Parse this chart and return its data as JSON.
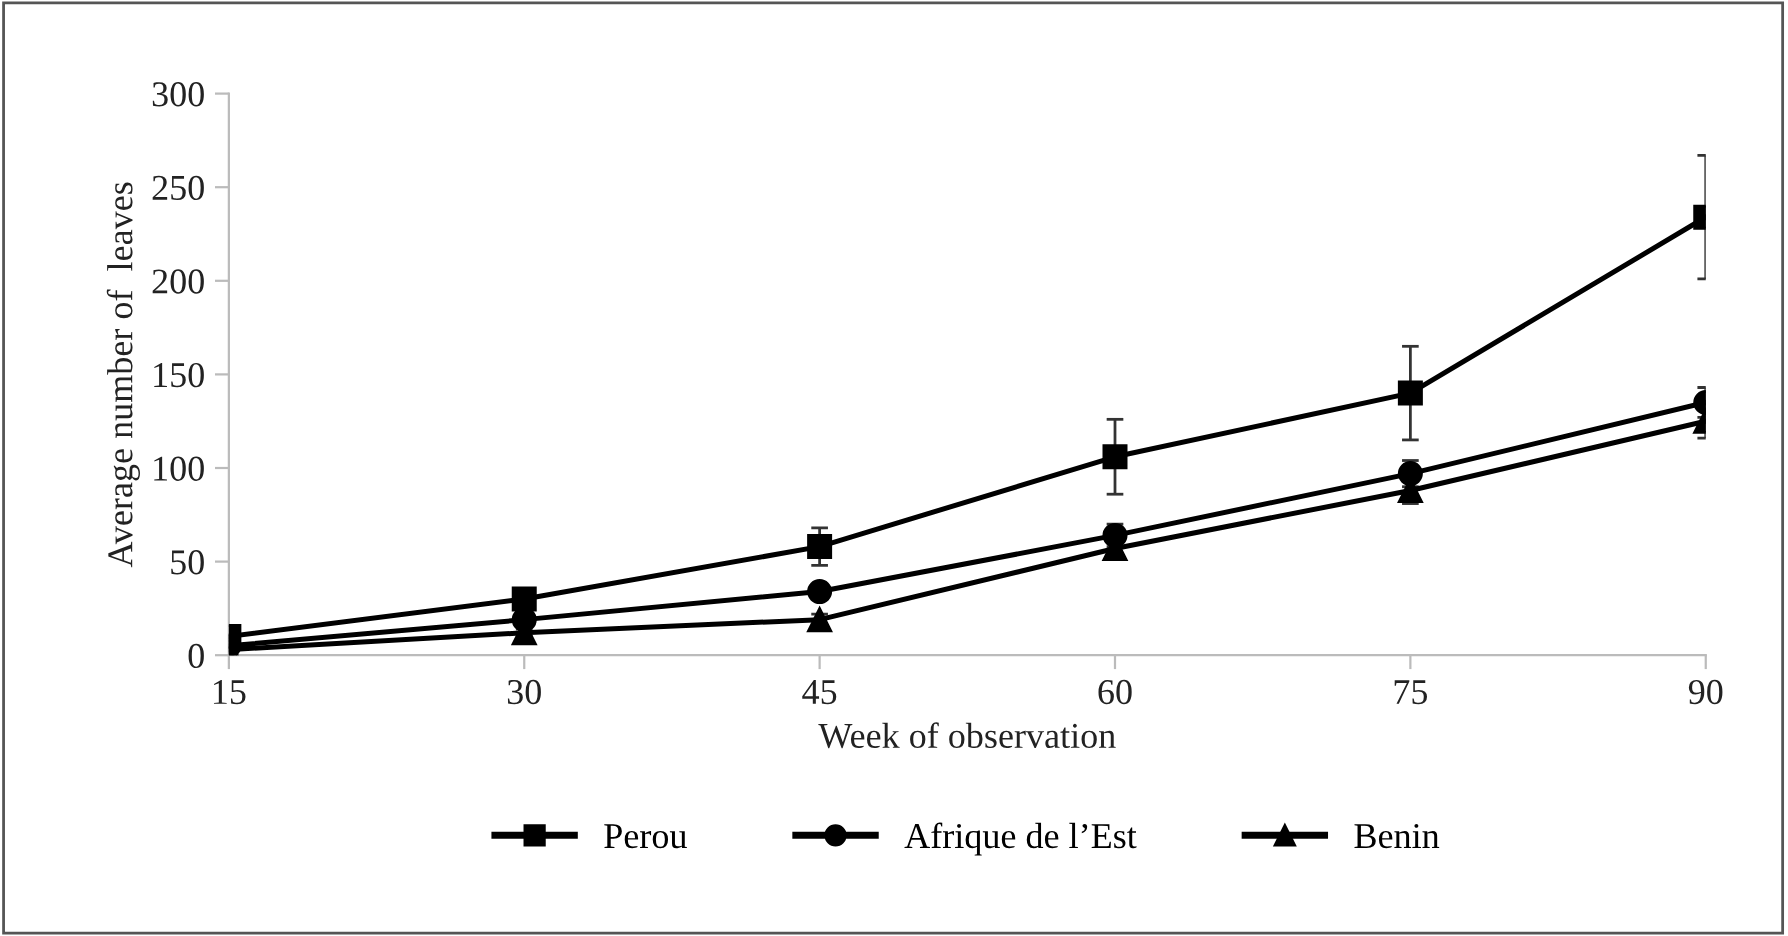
{
  "chart_data": {
    "type": "line",
    "xlabel": "Week of observation",
    "ylabel": "Average number of  leaves",
    "x": [
      15,
      30,
      45,
      60,
      75,
      90
    ],
    "xlim": [
      15,
      90
    ],
    "xticks": [
      15,
      30,
      45,
      60,
      75,
      90
    ],
    "ylim": [
      0,
      300
    ],
    "yticks": [
      0,
      50,
      100,
      150,
      200,
      250,
      300
    ],
    "grid": false,
    "legend": "bottom",
    "series": [
      {
        "name": "Perou",
        "color": "#000000",
        "marker": "square",
        "values": [
          10,
          30,
          58,
          106,
          140,
          234
        ],
        "errors": [
          3,
          4,
          10,
          20,
          25,
          33
        ]
      },
      {
        "name": "Afrique de l’Est",
        "color": "#000000",
        "marker": "circle",
        "values": [
          5,
          19,
          34,
          64,
          97,
          135
        ],
        "errors": [
          2,
          3,
          3,
          6,
          7,
          8
        ]
      },
      {
        "name": "Benin",
        "color": "#000000",
        "marker": "triangle",
        "values": [
          3,
          12,
          19,
          57,
          88,
          125
        ],
        "errors": [
          2,
          2,
          3,
          5,
          7,
          9
        ]
      }
    ]
  }
}
